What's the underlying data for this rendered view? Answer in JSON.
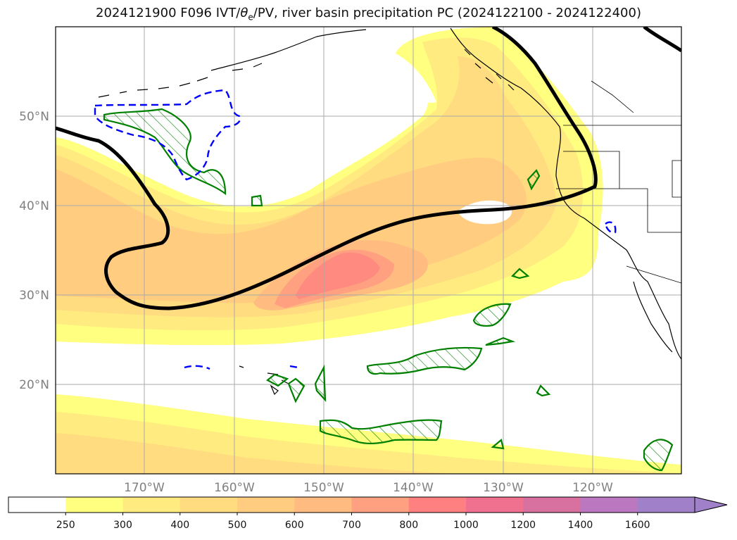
{
  "title": {
    "pre": "2024121900 F096 IVT/",
    "theta": "θ",
    "sub": "e",
    "post": "/PV, river basin precipitation PC (2024122100 - 2024122400)"
  },
  "map": {
    "lat_labels": [
      "50°N",
      "40°N",
      "30°N",
      "20°N"
    ],
    "lon_labels": [
      "170°W",
      "160°W",
      "150°W",
      "140°W",
      "130°W",
      "120°W"
    ]
  },
  "colorbar": {
    "ticks": [
      "250",
      "300",
      "400",
      "500",
      "600",
      "700",
      "800",
      "1000",
      "1200",
      "1400",
      "1600"
    ],
    "colors": [
      "#ffffff",
      "#ffff80",
      "#ffeb80",
      "#ffdc80",
      "#ffcc80",
      "#ffbb80",
      "#ffa080",
      "#ff8080",
      "#f07090",
      "#d870a0",
      "#bb78c0",
      "#a080c8"
    ]
  },
  "legend_colors": {
    "ivt_low": "#ffff80",
    "ivt_mid": "#ffd280",
    "ivt_high": "#ff8a80",
    "theta_e_contour": "#000000",
    "pv_contour": "#0000ff",
    "precip_hatch": "#008000"
  }
}
